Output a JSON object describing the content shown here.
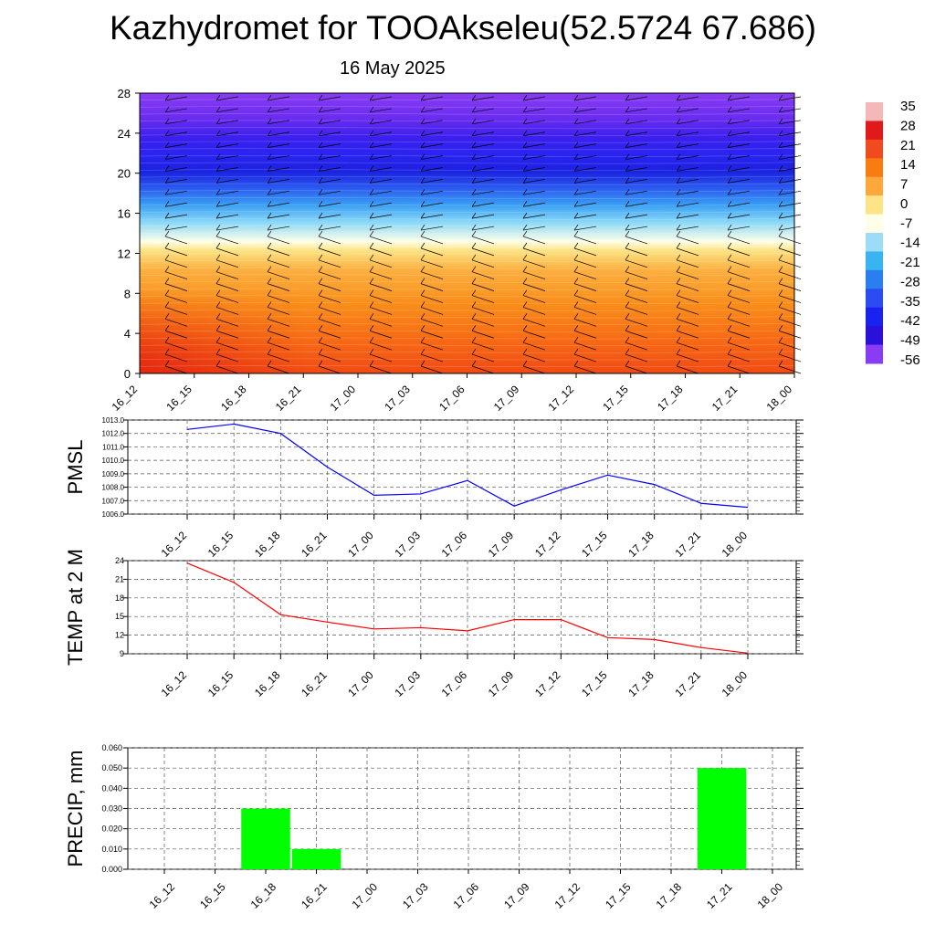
{
  "header": {
    "title": "Kazhydromet for TOOAkseleu(52.5724 67.686)",
    "subtitle": "16 May 2025"
  },
  "colorbar": {
    "labels": [
      "35",
      "28",
      "21",
      "14",
      "7",
      "0",
      "-7",
      "-14",
      "-21",
      "-28",
      "-35",
      "-42",
      "-49",
      "-56"
    ],
    "colors": [
      "#f4b8b8",
      "#e01a1a",
      "#f04a1e",
      "#f87c10",
      "#fca83a",
      "#fde486",
      "#ffffe8",
      "#9cdcf6",
      "#38b4f0",
      "#2a7ef0",
      "#2a4cf2",
      "#1a22f0",
      "#2a10d8",
      "#8a3cf4"
    ]
  },
  "chart_data": [
    {
      "type": "heatmap",
      "description_axis": "height",
      "x": [
        "16_12",
        "16_15",
        "16_18",
        "16_21",
        "17_00",
        "17_03",
        "17_06",
        "17_09",
        "17_12",
        "17_15",
        "17_18",
        "17_21",
        "18_00"
      ],
      "ylim": [
        0,
        28
      ],
      "yticks": [
        0,
        4,
        8,
        12,
        16,
        20,
        24,
        28
      ],
      "grid": false,
      "legend": "right"
    },
    {
      "type": "line",
      "ylabel": "PMSL",
      "x": [
        "16_12",
        "16_15",
        "16_18",
        "16_21",
        "17_00",
        "17_03",
        "17_06",
        "17_09",
        "17_12",
        "17_15",
        "17_18",
        "17_21",
        "18_00"
      ],
      "values": [
        1012.3,
        1012.7,
        1012.0,
        1009.5,
        1007.4,
        1007.5,
        1008.5,
        1006.6,
        1007.8,
        1008.9,
        1008.2,
        1006.8,
        1006.5
      ],
      "ylim": [
        1006.0,
        1013.0
      ],
      "yticks": [
        "1006.0",
        "1007.0",
        "1008.0",
        "1009.0",
        "1010.0",
        "1011.0",
        "1012.0",
        "1013.0"
      ],
      "color": "#0000ff",
      "grid": true
    },
    {
      "type": "line",
      "ylabel": "TEMP at 2 M",
      "x": [
        "16_12",
        "16_15",
        "16_18",
        "16_21",
        "17_00",
        "17_03",
        "17_06",
        "17_09",
        "17_12",
        "17_15",
        "17_18",
        "17_21",
        "18_00"
      ],
      "values": [
        23.6,
        20.5,
        15.3,
        14.1,
        13.0,
        13.2,
        12.7,
        14.5,
        14.5,
        11.6,
        11.3,
        10.0,
        9.1
      ],
      "ylim": [
        9,
        24
      ],
      "yticks": [
        "9",
        "12",
        "15",
        "18",
        "21",
        "24"
      ],
      "color": "#ff0000",
      "grid": true
    },
    {
      "type": "bar",
      "ylabel": "PRECIP, mm",
      "categories": [
        "16_12",
        "16_15",
        "16_18",
        "16_21",
        "17_00",
        "17_03",
        "17_06",
        "17_09",
        "17_12",
        "17_15",
        "17_18",
        "17_21",
        "18_00"
      ],
      "values": [
        0,
        0,
        0.03,
        0.01,
        0,
        0,
        0,
        0,
        0,
        0,
        0,
        0.05,
        0
      ],
      "ylim": [
        0,
        0.06
      ],
      "yticks": [
        "0.000",
        "0.010",
        "0.020",
        "0.030",
        "0.040",
        "0.050",
        "0.060"
      ],
      "color": "#00ff00",
      "grid": true
    }
  ]
}
